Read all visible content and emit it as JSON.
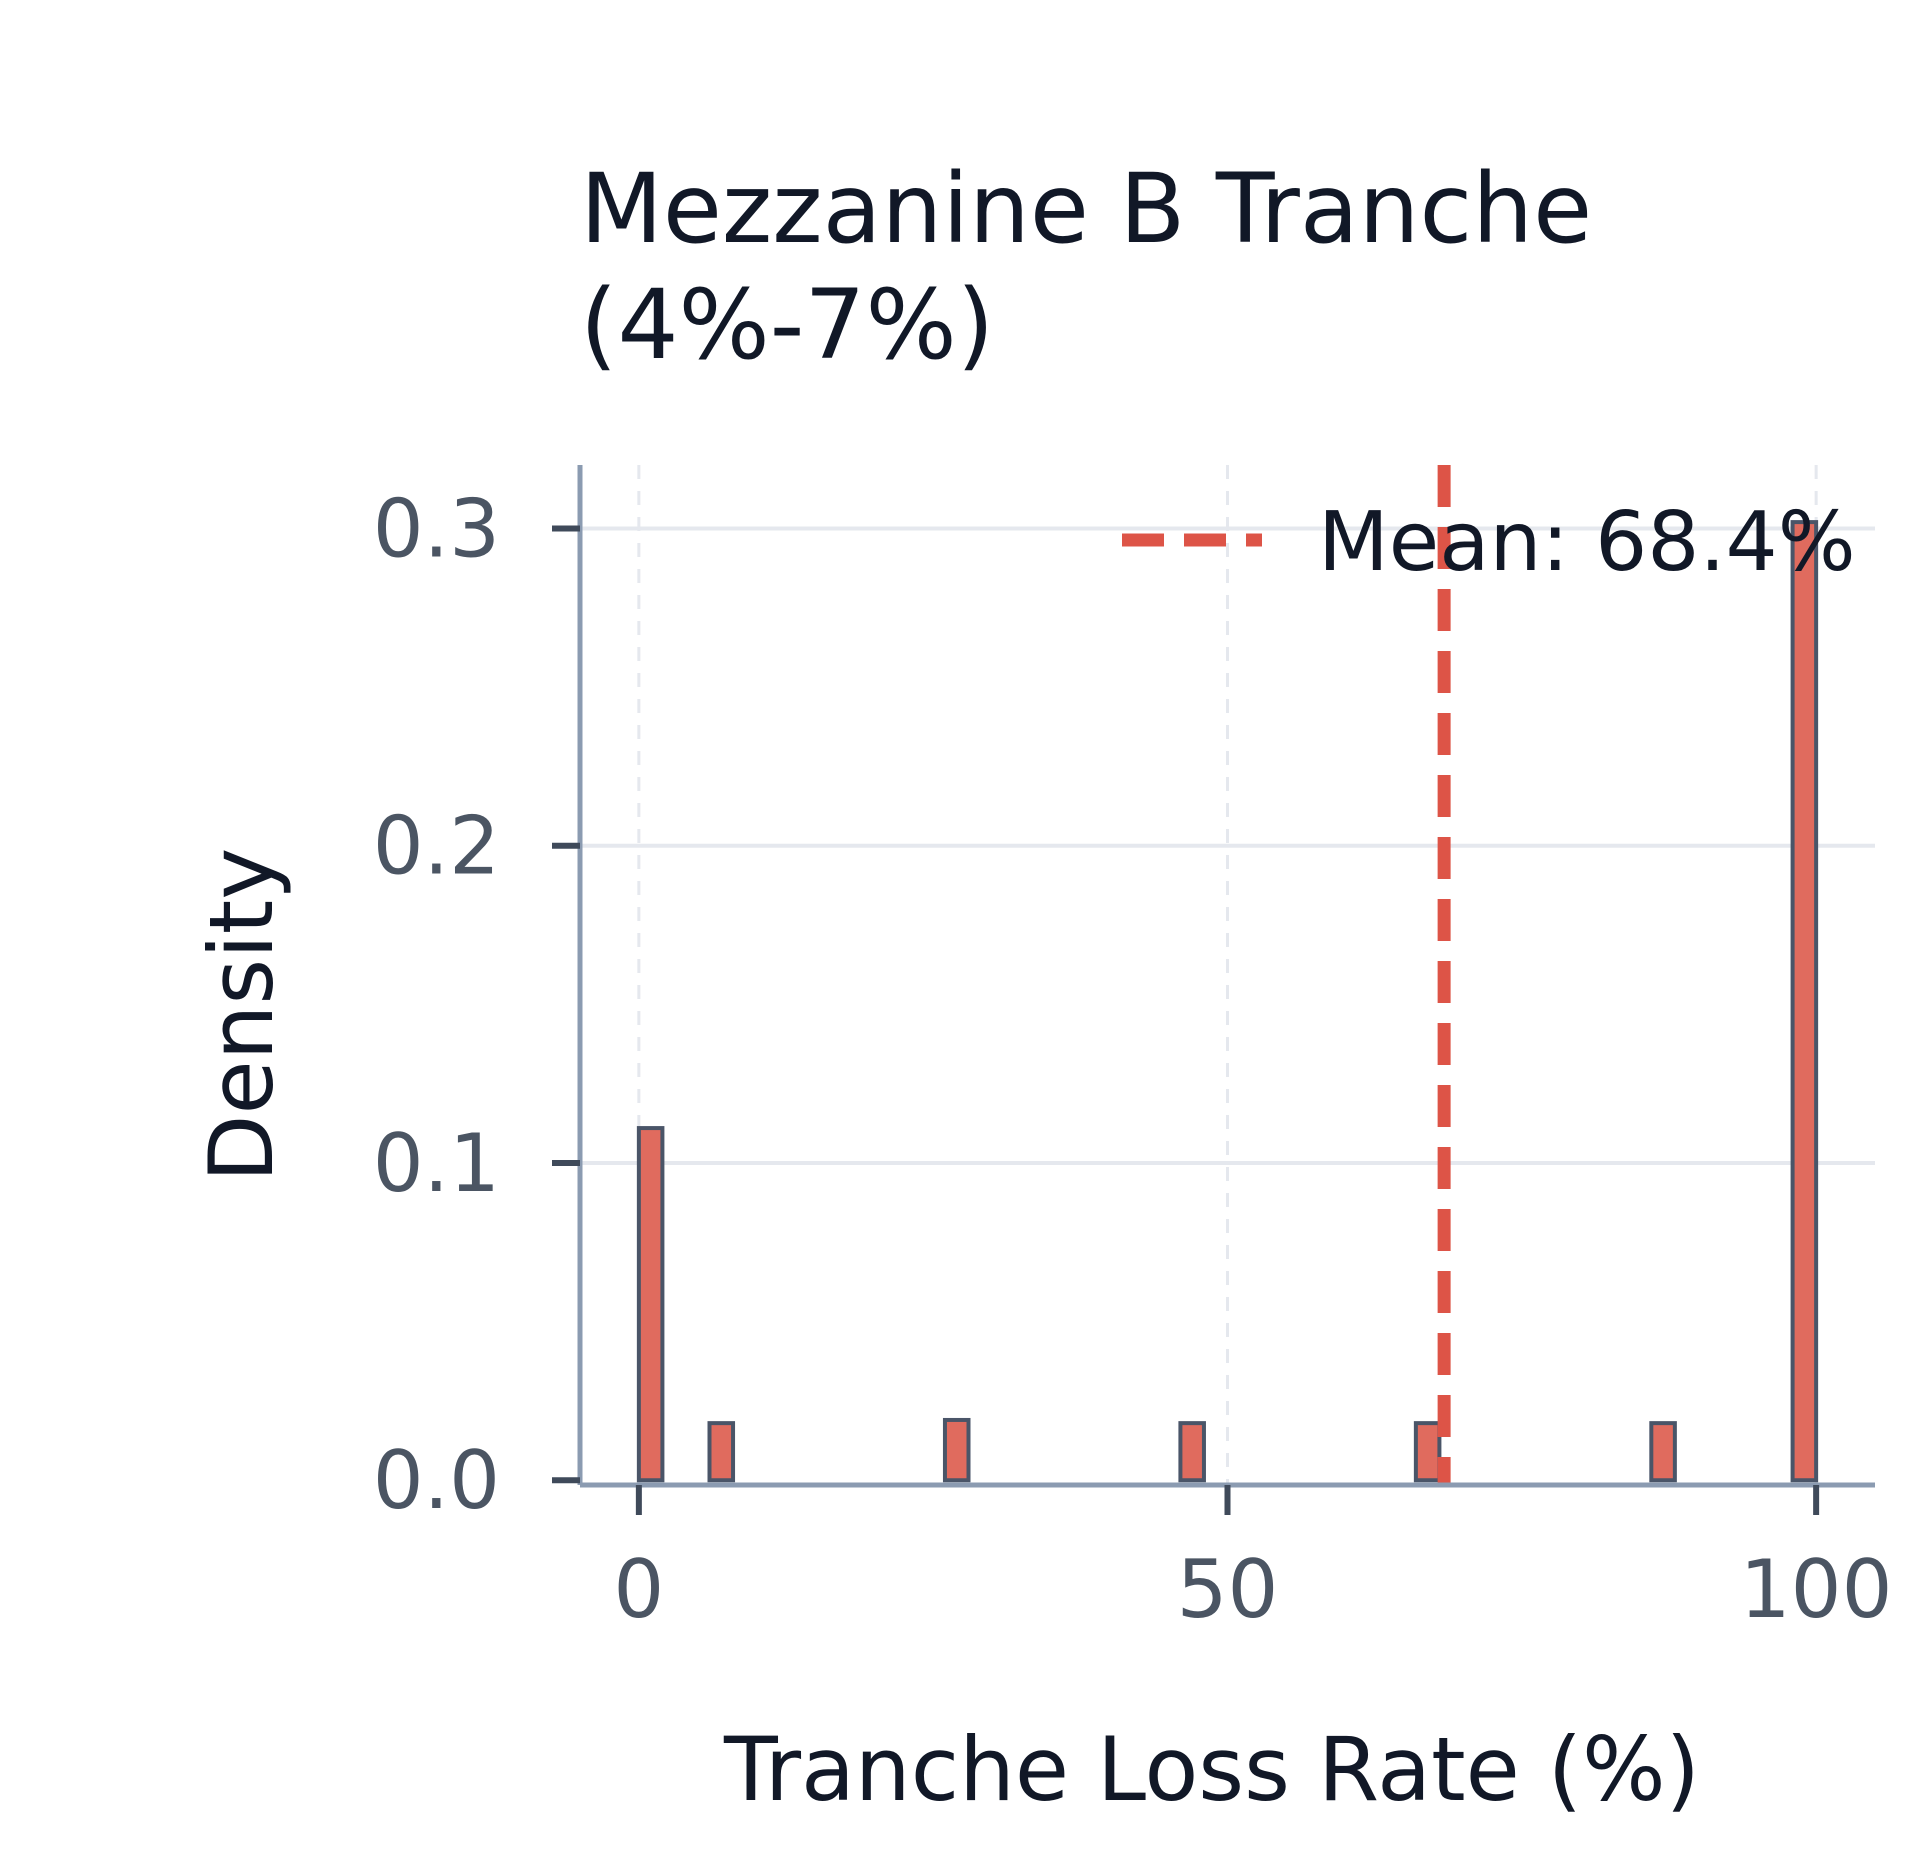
{
  "chart_data": {
    "type": "bar",
    "title_lines": [
      "Mezzanine B Tranche",
      "(4%-7%)"
    ],
    "xlabel": "Tranche Loss Rate (%)",
    "ylabel": "Density",
    "xlim": [
      -5,
      105
    ],
    "ylim": [
      -0.0015,
      0.32
    ],
    "x_ticks": [
      "0",
      "50",
      "100"
    ],
    "x_tick_values": [
      0,
      50,
      100
    ],
    "y_ticks": [
      "0.0",
      "0.1",
      "0.2",
      "0.3"
    ],
    "y_tick_values": [
      0.0,
      0.1,
      0.2,
      0.3
    ],
    "bins": [
      {
        "start": 0,
        "end": 2,
        "density": 0.111
      },
      {
        "start": 6,
        "end": 8,
        "density": 0.018
      },
      {
        "start": 26,
        "end": 28,
        "density": 0.019
      },
      {
        "start": 46,
        "end": 48,
        "density": 0.018
      },
      {
        "start": 66,
        "end": 68,
        "density": 0.018
      },
      {
        "start": 86,
        "end": 88,
        "density": 0.018
      },
      {
        "start": 98,
        "end": 100,
        "density": 0.302
      }
    ],
    "mean_line": {
      "value": 68.4,
      "label": "Mean: 68.4%"
    },
    "legend_position": "top-right",
    "grid": true,
    "colors": {
      "bar_fill": "#e06b5e",
      "bar_edge": "#4a5568",
      "mean_line": "#dd5447",
      "grid": "#e5e8ee",
      "axis": "#8b9bb1",
      "tick_mark": "#3f4a5a"
    }
  }
}
